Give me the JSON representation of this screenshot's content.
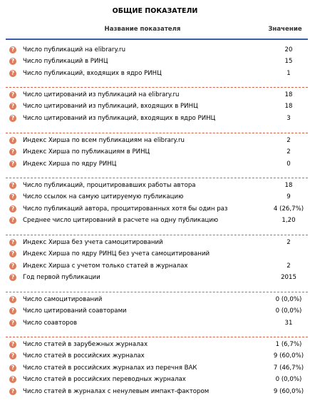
{
  "title": "ОБЩИЕ ПОКАЗАТЕЛИ",
  "header": {
    "name": "Название показателя",
    "value": "Значение"
  },
  "help_icon": "?",
  "groups": [
    {
      "rows": [
        {
          "label": "Число публикаций на elibrary.ru",
          "value": "20"
        },
        {
          "label": "Число публикаций в РИНЦ",
          "value": "15"
        },
        {
          "label": "Число публикаций, входящих в ядро РИНЦ",
          "value": "1"
        }
      ]
    },
    {
      "rows": [
        {
          "label": "Число цитирований из публикаций на elibrary.ru",
          "value": "18"
        },
        {
          "label": "Число цитирований из публикаций, входящих в РИНЦ",
          "value": "18"
        },
        {
          "label": "Число цитирований из публикаций, входящих в ядро РИНЦ",
          "value": "3"
        }
      ]
    },
    {
      "rows": [
        {
          "label": "Индекс Хирша по всем публикациям на elibrary.ru",
          "value": "2"
        },
        {
          "label": "Индекс Хирша по публикациям в РИНЦ",
          "value": "2"
        },
        {
          "label": "Индекс Хирша по ядру РИНЦ",
          "value": "0"
        }
      ]
    },
    {
      "rows": [
        {
          "label": "Число публикаций, процитировавших работы автора",
          "value": "18"
        },
        {
          "label": "Число ссылок на самую цитируемую публикацию",
          "value": "9"
        },
        {
          "label": "Число публикаций автора, процитированных хотя бы один раз",
          "value": "4 (26,7%)"
        },
        {
          "label": "Среднее число цитирований в расчете на одну публикацию",
          "value": "1,20"
        }
      ]
    },
    {
      "rows": [
        {
          "label": "Индекс Хирша без учета самоцитирований",
          "value": "2"
        },
        {
          "label": "Индекс Хирша по ядру РИНЦ без учета самоцитирований",
          "value": ""
        },
        {
          "label": "Индекс Хирша с учетом только статей в журналах",
          "value": "2"
        },
        {
          "label": "Год первой публикации",
          "value": "2015"
        }
      ]
    },
    {
      "rows": [
        {
          "label": "Число самоцитирований",
          "value": "0 (0,0%)"
        },
        {
          "label": "Число цитирований соавторами",
          "value": "0 (0,0%)"
        },
        {
          "label": "Число соавторов",
          "value": "31"
        }
      ]
    },
    {
      "rows": [
        {
          "label": "Число статей в зарубежных журналах",
          "value": "1 (6,7%)"
        },
        {
          "label": "Число статей в российских журналах",
          "value": "9 (60,0%)"
        },
        {
          "label": "Число статей в российских журналах из перечня ВАК",
          "value": "7 (46,7%)"
        },
        {
          "label": "Число статей в российских переводных журналах",
          "value": "0 (0,0%)"
        },
        {
          "label": "Число статей в журналах с ненулевым импакт-фактором",
          "value": "9 (60,0%)"
        }
      ]
    }
  ]
}
